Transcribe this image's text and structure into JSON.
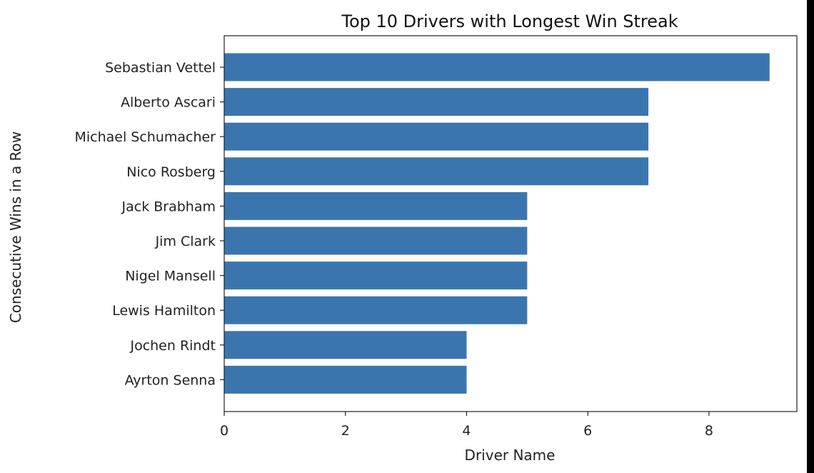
{
  "chart_data": {
    "type": "bar",
    "orientation": "horizontal",
    "title": "Top 10 Drivers with Longest Win Streak",
    "xlabel": "Driver Name",
    "ylabel": "Consecutive Wins in a Row",
    "categories": [
      "Sebastian Vettel",
      "Alberto Ascari",
      "Michael Schumacher",
      "Nico Rosberg",
      "Jack Brabham",
      "Jim Clark",
      "Nigel Mansell",
      "Lewis Hamilton",
      "Jochen Rindt",
      "Ayrton Senna"
    ],
    "values": [
      9,
      7,
      7,
      7,
      5,
      5,
      5,
      5,
      4,
      4
    ],
    "xlim": [
      0,
      9.45
    ],
    "xticks": [
      0,
      2,
      4,
      6,
      8
    ],
    "grid": false,
    "bar_color": "#3a76ad"
  }
}
